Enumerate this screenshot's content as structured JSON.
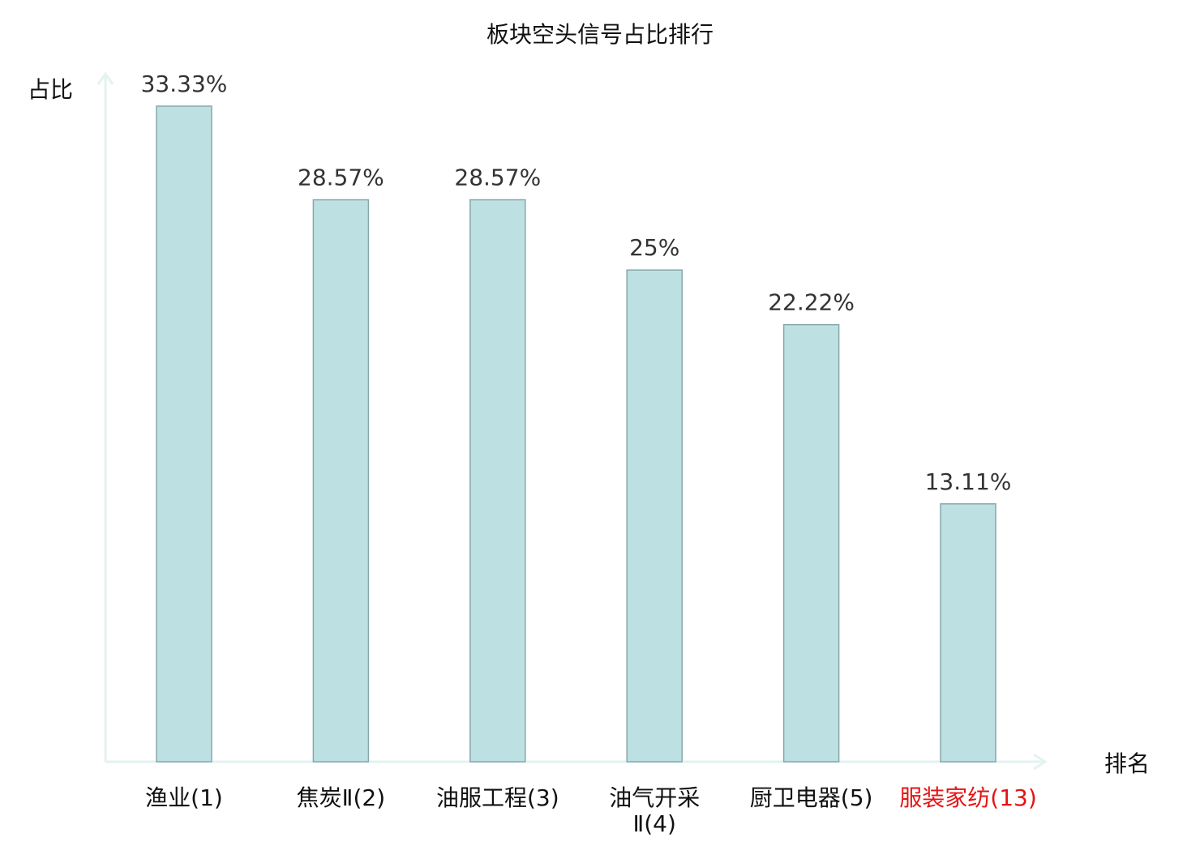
{
  "chart_data": {
    "type": "bar",
    "title": "板块空头信号占比排行",
    "ylabel": "占比",
    "xlabel": "排名",
    "ylim": [
      0,
      33.33
    ],
    "grid": false,
    "legend": "none",
    "colors": {
      "bar_fill": "#bde1e3",
      "bar_stroke": "#86a8aa",
      "axis": "#e3f3f1",
      "text": "#333333",
      "label": "#111111",
      "highlight": "#e41414"
    },
    "categories": [
      {
        "name": "渔业",
        "rank": "(1)",
        "highlight": false
      },
      {
        "name": "焦炭Ⅱ",
        "rank": "(2)",
        "highlight": false
      },
      {
        "name": "油服工程",
        "rank": "(3)",
        "highlight": false
      },
      {
        "name": "油气开采Ⅱ",
        "rank": "(4)",
        "highlight": false
      },
      {
        "name": "厨卫电器",
        "rank": "(5)",
        "highlight": false
      },
      {
        "name": "服装家纺",
        "rank": "(13)",
        "highlight": true
      }
    ],
    "values": [
      33.33,
      28.57,
      28.57,
      25,
      22.22,
      13.11
    ],
    "value_labels": [
      "33.33%",
      "28.57%",
      "28.57%",
      "25%",
      "22.22%",
      "13.11%"
    ]
  }
}
